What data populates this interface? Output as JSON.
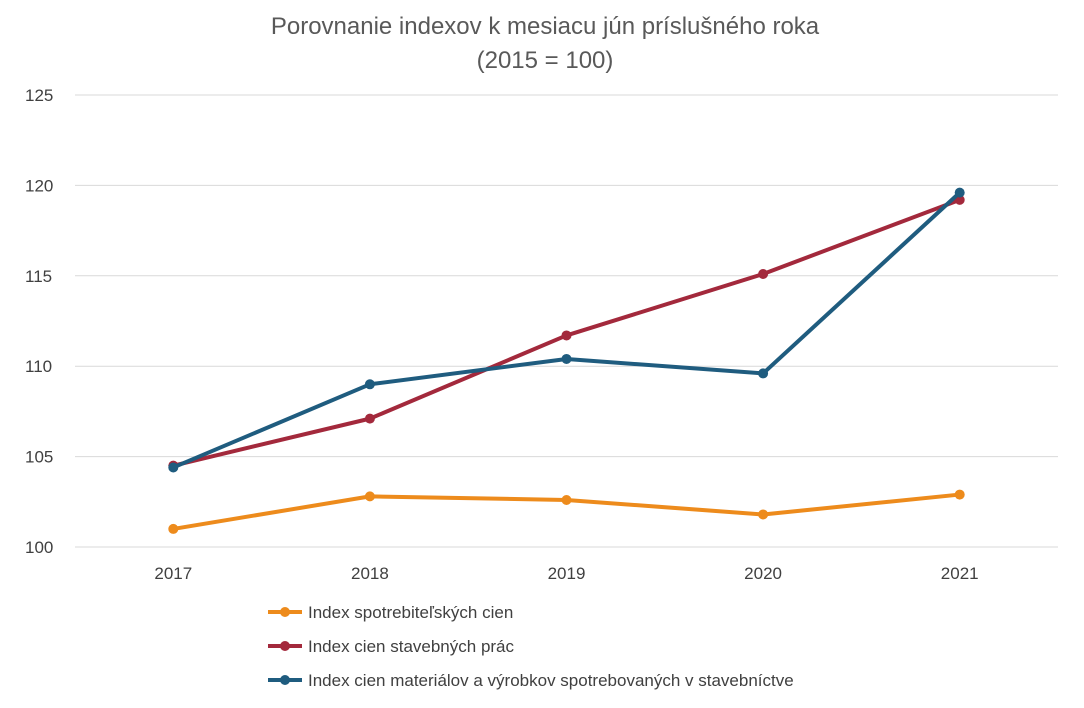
{
  "chart_data": {
    "type": "line",
    "title": "Porovnanie indexov k mesiacu jún príslušného roka",
    "subtitle": "(2015 = 100)",
    "categories": [
      "2017",
      "2018",
      "2019",
      "2020",
      "2021"
    ],
    "ylim": [
      100,
      125
    ],
    "yticks": [
      100,
      105,
      110,
      115,
      120,
      125
    ],
    "xlabel": "",
    "ylabel": "",
    "grid": true,
    "legend_position": "bottom",
    "series": [
      {
        "name": "Index spotrebiteľských cien",
        "color": "#ED8B1C",
        "values": [
          101.0,
          102.8,
          102.6,
          101.8,
          102.9
        ]
      },
      {
        "name": "Index cien stavebných prác",
        "color": "#A3293C",
        "values": [
          104.5,
          107.1,
          111.7,
          115.1,
          119.2
        ]
      },
      {
        "name": "Index cien materiálov a výrobkov spotrebovaných v stavebníctve",
        "color": "#1F5C7F",
        "values": [
          104.4,
          109.0,
          110.4,
          109.6,
          119.6
        ]
      }
    ]
  }
}
